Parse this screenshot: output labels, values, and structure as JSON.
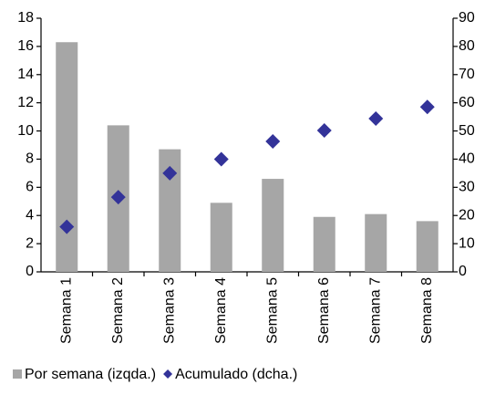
{
  "chart_data": {
    "type": "bar",
    "categories": [
      "Semana 1",
      "Semana 2",
      "Semana 3",
      "Semana 4",
      "Semana 5",
      "Semana 6",
      "Semana 7",
      "Semana 8"
    ],
    "series": [
      {
        "name": "Por semana (izqda.)",
        "type": "bar",
        "color": "#a6a6a6",
        "values": [
          16.3,
          10.4,
          8.7,
          4.9,
          6.6,
          3.9,
          4.1,
          3.6
        ]
      },
      {
        "name": "Acumulado (dcha.)",
        "type": "scatter",
        "axis": "y2",
        "color": "#333399",
        "values": [
          16,
          26.5,
          35,
          40,
          46.3,
          50.2,
          54.4,
          58.5
        ]
      }
    ],
    "ylim": [
      0,
      18
    ],
    "yticks": [
      0,
      2,
      4,
      6,
      8,
      10,
      12,
      14,
      16,
      18
    ],
    "y2lim": [
      0,
      90
    ],
    "y2ticks": [
      0,
      10,
      20,
      30,
      40,
      50,
      60,
      70,
      80,
      90
    ],
    "grid": false
  }
}
